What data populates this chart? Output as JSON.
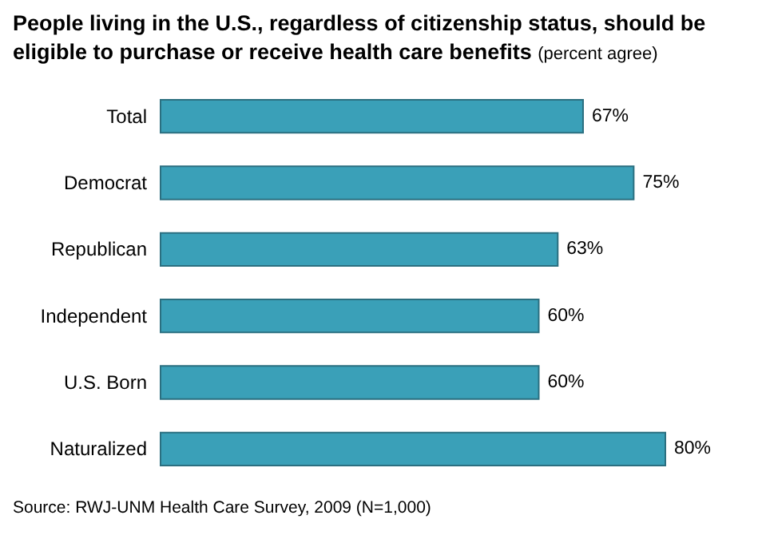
{
  "chart_data": {
    "type": "bar",
    "orientation": "horizontal",
    "title": "People living in the U.S., regardless of citizenship status, should be eligible to purchase or receive health care benefits",
    "subtitle": "(percent agree)",
    "categories": [
      "Total",
      "Democrat",
      "Republican",
      "Independent",
      "U.S. Born",
      "Naturalized"
    ],
    "values": [
      67,
      75,
      63,
      60,
      60,
      80
    ],
    "value_labels": [
      "67%",
      "75%",
      "63%",
      "60%",
      "60%",
      "80%"
    ],
    "color": "#3aa0b8",
    "annotations": [
      "Source: RWJ-UNM Health Care Survey, 2009 (N=1,000)"
    ]
  }
}
